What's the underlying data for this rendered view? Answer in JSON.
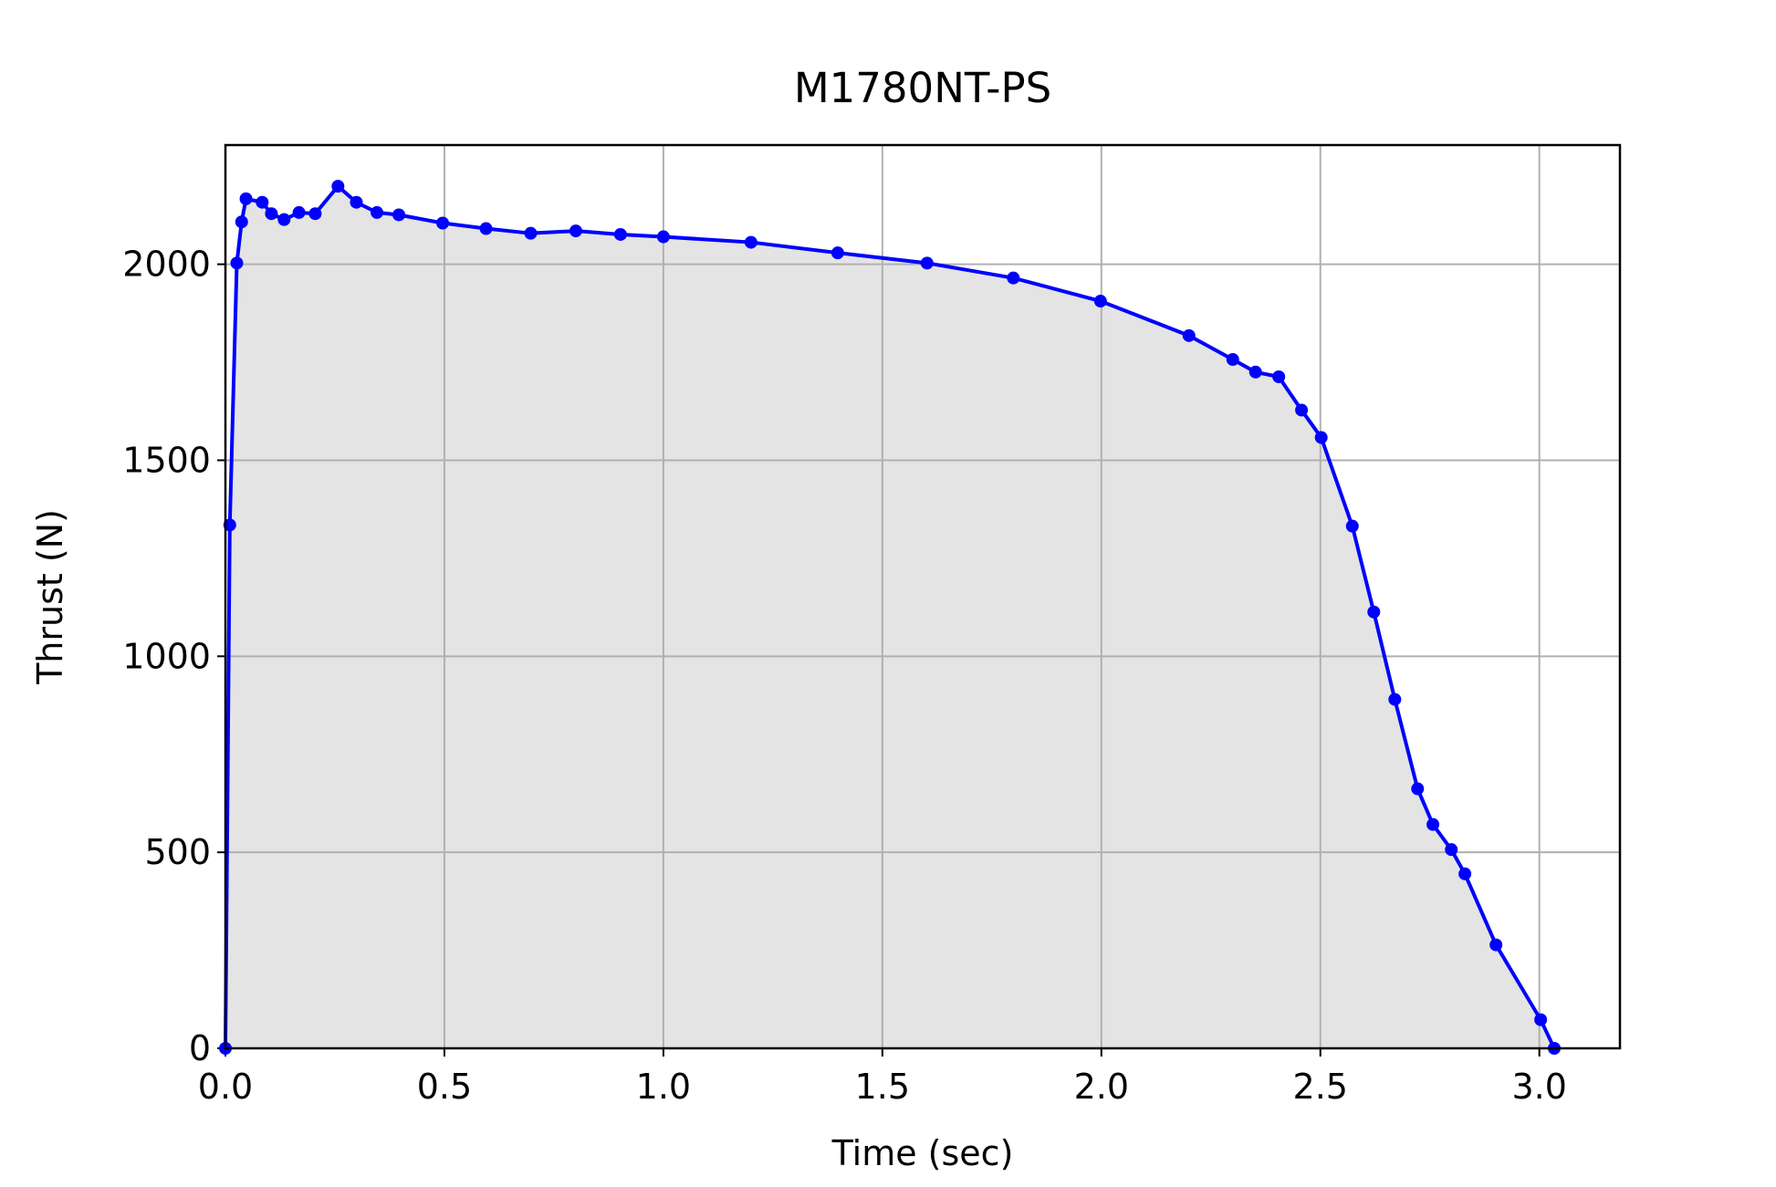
{
  "chart_data": {
    "type": "line",
    "title": "M1780NT-PS",
    "xlabel": "Time (sec)",
    "ylabel": "Thrust (N)",
    "x": [
      0,
      0.01,
      0.026,
      0.037,
      0.047,
      0.084,
      0.105,
      0.134,
      0.168,
      0.205,
      0.257,
      0.299,
      0.346,
      0.396,
      0.496,
      0.595,
      0.697,
      0.8,
      0.902,
      1.0,
      1.2,
      1.398,
      1.602,
      1.799,
      1.998,
      2.2,
      2.3,
      2.352,
      2.405,
      2.457,
      2.502,
      2.573,
      2.622,
      2.67,
      2.722,
      2.757,
      2.799,
      2.83,
      2.901,
      3.003,
      3.034
    ],
    "series": [
      {
        "color": "#0000ff",
        "values": [
          0,
          1335,
          2003,
          2108,
          2167,
          2158,
          2129,
          2114,
          2132,
          2129,
          2199,
          2158,
          2132,
          2126,
          2105,
          2091,
          2079,
          2085,
          2076,
          2070,
          2056,
          2029,
          2003,
          1965,
          1906,
          1818,
          1757,
          1725,
          1713,
          1628,
          1558,
          1332,
          1113,
          890,
          662,
          571,
          507,
          445,
          264,
          73,
          0
        ]
      }
    ],
    "fill_color": "#e4e4e4",
    "xlim": [
      0,
      3.184
    ],
    "ylim": [
      0,
      2304
    ],
    "xticks": [
      {
        "value": 0,
        "label": "0.0"
      },
      0.5,
      {
        "value": 1,
        "label": "1.0"
      },
      1.5,
      {
        "value": 2,
        "label": "2.0"
      },
      2.5,
      {
        "value": 3,
        "label": "3.0"
      }
    ],
    "yticks": [
      0,
      500,
      1000,
      1500,
      2000
    ],
    "grid": true
  }
}
